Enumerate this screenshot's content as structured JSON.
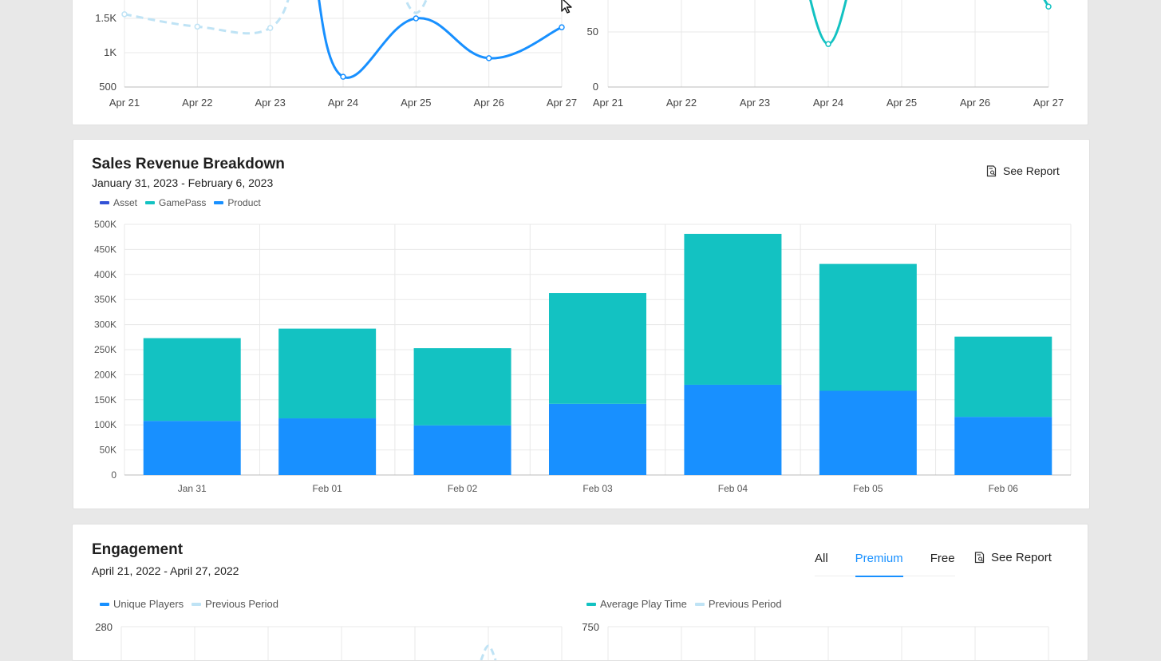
{
  "colors": {
    "asset": "#3352d6",
    "gamepass": "#13c2c2",
    "product": "#1890ff",
    "previous": "#bfe3f5",
    "grid": "#e8e8e8",
    "axis": "#555555"
  },
  "icons": {
    "report": "report-search-icon",
    "cursor": "mouse-pointer-icon"
  },
  "top_section": {
    "left_chart": {
      "x_labels": [
        "Apr 21",
        "Apr 22",
        "Apr 23",
        "Apr 24",
        "Apr 25",
        "Apr 26",
        "Apr 27"
      ],
      "y_ticks": [
        "500",
        "1K",
        "1.5K"
      ]
    },
    "right_chart": {
      "x_labels": [
        "Apr 21",
        "Apr 22",
        "Apr 23",
        "Apr 24",
        "Apr 25",
        "Apr 26",
        "Apr 27"
      ],
      "y_ticks": [
        "0",
        "50"
      ]
    }
  },
  "sales": {
    "title": "Sales Revenue Breakdown",
    "subtitle": "January 31, 2023 - February 6, 2023",
    "see_report": "See Report",
    "legend": [
      {
        "name": "Asset",
        "color": "#3352d6"
      },
      {
        "name": "GamePass",
        "color": "#13c2c2"
      },
      {
        "name": "Product",
        "color": "#1890ff"
      }
    ]
  },
  "engagement": {
    "title": "Engagement",
    "subtitle": "April 21, 2022 - April 27, 2022",
    "tabs": [
      "All",
      "Premium",
      "Free"
    ],
    "active_tab": "Premium",
    "see_report": "See Report",
    "left_legend": [
      {
        "name": "Unique Players",
        "color": "#1890ff"
      },
      {
        "name": "Previous Period",
        "color": "#bfe3f5"
      }
    ],
    "right_legend": [
      {
        "name": "Average Play Time",
        "color": "#13c2c2"
      },
      {
        "name": "Previous Period",
        "color": "#bfe3f5"
      }
    ],
    "left_y_top": "280",
    "right_y_top": "750"
  },
  "chart_data": [
    {
      "type": "line",
      "x": [
        "Apr 21",
        "Apr 22",
        "Apr 23",
        "Apr 24",
        "Apr 25",
        "Apr 26",
        "Apr 27"
      ],
      "y_ticks": [
        "500",
        "1K",
        "1.5K"
      ],
      "series": [
        {
          "name": "Unique Players",
          "values": [
            null,
            null,
            null,
            650,
            1500,
            920,
            1370
          ]
        },
        {
          "name": "Previous Period",
          "values": [
            1560,
            1380,
            1360,
            null,
            1580,
            null,
            null
          ]
        }
      ]
    },
    {
      "type": "line",
      "x": [
        "Apr 21",
        "Apr 22",
        "Apr 23",
        "Apr 24",
        "Apr 25",
        "Apr 26",
        "Apr 27"
      ],
      "y_ticks": [
        "0",
        "50"
      ],
      "series": [
        {
          "name": "Average Play Time",
          "values": [
            null,
            null,
            null,
            39,
            null,
            null,
            73
          ]
        }
      ]
    },
    {
      "type": "bar",
      "title": "Sales Revenue Breakdown",
      "categories": [
        "Jan 31",
        "Feb 01",
        "Feb 02",
        "Feb 03",
        "Feb 04",
        "Feb 05",
        "Feb 06"
      ],
      "ylim": [
        0,
        500000
      ],
      "y_ticks": [
        "0",
        "50K",
        "100K",
        "150K",
        "200K",
        "250K",
        "300K",
        "350K",
        "400K",
        "450K",
        "500K"
      ],
      "legend": "top-left",
      "grid": true,
      "series": [
        {
          "name": "Asset",
          "values": [
            0,
            0,
            0,
            0,
            0,
            0,
            0
          ]
        },
        {
          "name": "Product",
          "values": [
            108000,
            113000,
            99000,
            142000,
            180000,
            168000,
            116000
          ]
        },
        {
          "name": "GamePass",
          "values": [
            165000,
            179000,
            154000,
            221000,
            301000,
            253000,
            160000
          ]
        }
      ]
    }
  ]
}
